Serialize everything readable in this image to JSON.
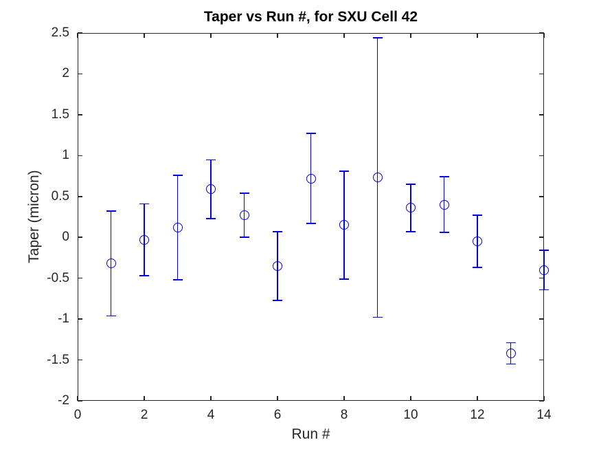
{
  "figure": {
    "title": "Taper vs Run #, for SXU Cell 42",
    "xlabel": "Run #",
    "ylabel": "Taper (micron)"
  },
  "chart_data": {
    "type": "scatter",
    "subtype": "errorbar",
    "title": "Taper vs Run #, for SXU Cell 42",
    "xlabel": "Run #",
    "ylabel": "Taper (micron)",
    "xlim": [
      0,
      14
    ],
    "ylim": [
      -2,
      2.5
    ],
    "xticks": [
      0,
      2,
      4,
      6,
      8,
      10,
      12,
      14
    ],
    "xtick_labels": [
      "0",
      "2",
      "4",
      "6",
      "8",
      "10",
      "12",
      "14"
    ],
    "yticks": [
      -2,
      -1.5,
      -1,
      -0.5,
      0,
      0.5,
      1,
      1.5,
      2,
      2.5
    ],
    "ytick_labels": [
      "-2",
      "-1.5",
      "-1",
      "-0.5",
      "0",
      "0.5",
      "1",
      "1.5",
      "2",
      "2.5"
    ],
    "grid": false,
    "legend": "none",
    "marker": "open-circle",
    "series_color": "#0000EE",
    "axis_color": "#262626",
    "series": [
      {
        "name": "Taper",
        "x": [
          1,
          2,
          3,
          4,
          5,
          6,
          7,
          8,
          9,
          10,
          11,
          12,
          13,
          14
        ],
        "y": [
          -0.32,
          -0.03,
          0.12,
          0.59,
          0.27,
          -0.35,
          0.72,
          0.15,
          0.73,
          0.36,
          0.4,
          -0.05,
          -1.42,
          -0.4
        ],
        "yerr": [
          0.64,
          0.44,
          0.64,
          0.36,
          0.27,
          0.42,
          0.55,
          0.66,
          1.71,
          0.29,
          0.34,
          0.32,
          0.13,
          0.24
        ]
      }
    ]
  }
}
